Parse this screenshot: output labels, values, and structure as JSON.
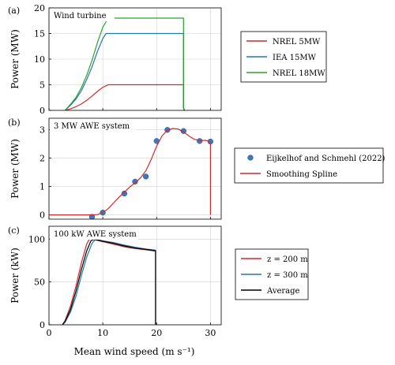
{
  "figure": {
    "xlabel": "Mean wind speed (m s⁻¹)"
  },
  "chart_data": [
    {
      "panel": "(a)",
      "inner_title": "Wind turbine",
      "type": "line",
      "ylabel": "Power (MW)",
      "xlim": [
        0,
        32
      ],
      "ylim": [
        0,
        20
      ],
      "xticks": [
        0,
        10,
        20,
        30
      ],
      "yticks": [
        0,
        5,
        10,
        15,
        20
      ],
      "x_tick_labels": [
        "",
        "",
        "",
        ""
      ],
      "y_tick_labels": [
        "0",
        "5",
        "10",
        "15",
        "20"
      ],
      "grid": true,
      "legend_position": "right",
      "series": [
        {
          "name": "NREL 5MW",
          "color": "#d62728",
          "x": [
            3,
            4,
            5,
            6,
            7,
            8,
            9,
            10,
            11,
            11.4,
            25,
            25,
            25.2
          ],
          "y": [
            0,
            0.3,
            0.7,
            1.25,
            1.95,
            2.8,
            3.7,
            4.5,
            5.0,
            5.0,
            5.0,
            0.5,
            0
          ]
        },
        {
          "name": "IEA 15MW",
          "color": "#1f77b4",
          "x": [
            3,
            4,
            5,
            6,
            7,
            8,
            9,
            10,
            10.6,
            25,
            25,
            25.1
          ],
          "y": [
            0,
            1.0,
            2.2,
            3.8,
            6.0,
            8.5,
            11.5,
            14.0,
            15.0,
            15.0,
            0.5,
            0
          ]
        },
        {
          "name": "NREL 18MW",
          "color": "#2ca02c",
          "x": [
            3,
            4,
            5,
            6,
            7,
            8,
            9,
            10,
            11,
            25,
            25,
            25.1
          ],
          "y": [
            0,
            1.2,
            2.5,
            4.4,
            6.8,
            9.8,
            13.2,
            16.2,
            18.0,
            18.0,
            0.5,
            0
          ]
        }
      ]
    },
    {
      "panel": "(b)",
      "inner_title": "3 MW AWE system",
      "type": "line",
      "ylabel": "Power (MW)",
      "xlim": [
        0,
        32
      ],
      "ylim": [
        -0.15,
        3.4
      ],
      "xticks": [
        0,
        10,
        20,
        30
      ],
      "yticks": [
        0,
        1,
        2,
        3
      ],
      "x_tick_labels": [
        "",
        "",
        "",
        ""
      ],
      "y_tick_labels": [
        "0",
        "1",
        "2",
        "3"
      ],
      "grid": true,
      "legend_position": "right",
      "series": [
        {
          "name": "Eijkelhof and Schmehl (2022)",
          "color": "#3a78c0",
          "kind": "scatter",
          "x": [
            8,
            10,
            14,
            16,
            18,
            20,
            22,
            25,
            28,
            30
          ],
          "y": [
            -0.07,
            0.08,
            0.75,
            1.17,
            1.35,
            2.6,
            2.99,
            2.95,
            2.6,
            2.58
          ]
        },
        {
          "name": "Smoothing Spline",
          "color": "#d62728",
          "kind": "line",
          "x": [
            0,
            7,
            8,
            9,
            10,
            11,
            12,
            13,
            14,
            15,
            16,
            17,
            18,
            19,
            20,
            21,
            22,
            23,
            24,
            25,
            26,
            27,
            28,
            29,
            29.7,
            30,
            30
          ],
          "y": [
            0,
            0,
            0,
            0.01,
            0.08,
            0.22,
            0.42,
            0.62,
            0.8,
            0.98,
            1.13,
            1.3,
            1.55,
            1.95,
            2.42,
            2.78,
            2.98,
            3.04,
            3.02,
            2.92,
            2.78,
            2.66,
            2.62,
            2.62,
            2.6,
            2.5,
            0
          ]
        }
      ]
    },
    {
      "panel": "(c)",
      "inner_title": "100 kW AWE system",
      "type": "line",
      "ylabel": "Power (kW)",
      "xlim": [
        0,
        32
      ],
      "ylim": [
        0,
        115
      ],
      "xticks": [
        0,
        10,
        20,
        30
      ],
      "yticks": [
        0,
        50,
        100
      ],
      "x_tick_labels": [
        "0",
        "10",
        "20",
        "30"
      ],
      "y_tick_labels": [
        "0",
        "50",
        "100"
      ],
      "grid": true,
      "legend_position": "right",
      "series": [
        {
          "name": "z = 200 m",
          "color": "#d62728",
          "x": [
            2.5,
            3,
            4,
            5,
            6,
            7,
            7.5,
            8,
            9,
            10,
            12,
            14,
            16,
            18,
            19.8,
            19.8,
            20
          ],
          "y": [
            0,
            5,
            22,
            45,
            72,
            94,
            100,
            100,
            98.5,
            97,
            94,
            91,
            89,
            87.5,
            86,
            1,
            0
          ]
        },
        {
          "name": "z = 300 m",
          "color": "#1f77b4",
          "x": [
            2.5,
            3,
            4,
            5,
            6,
            7,
            8,
            8.5,
            9,
            10,
            12,
            14,
            16,
            18,
            19.8,
            19.8,
            20
          ],
          "y": [
            0,
            3,
            15,
            33,
            57,
            79,
            95,
            99,
            99.5,
            98,
            96,
            93,
            90.5,
            88.5,
            87,
            1,
            0
          ]
        },
        {
          "name": "Average",
          "color": "#000000",
          "x": [
            2.5,
            3,
            4,
            5,
            6,
            7,
            7.8,
            8.2,
            9,
            10,
            12,
            14,
            16,
            18,
            19.8,
            19.8,
            20
          ],
          "y": [
            0,
            4,
            18,
            39,
            64,
            86,
            98,
            99.5,
            99,
            97.5,
            95,
            92,
            89.5,
            88,
            86.5,
            1,
            0
          ]
        }
      ]
    }
  ]
}
